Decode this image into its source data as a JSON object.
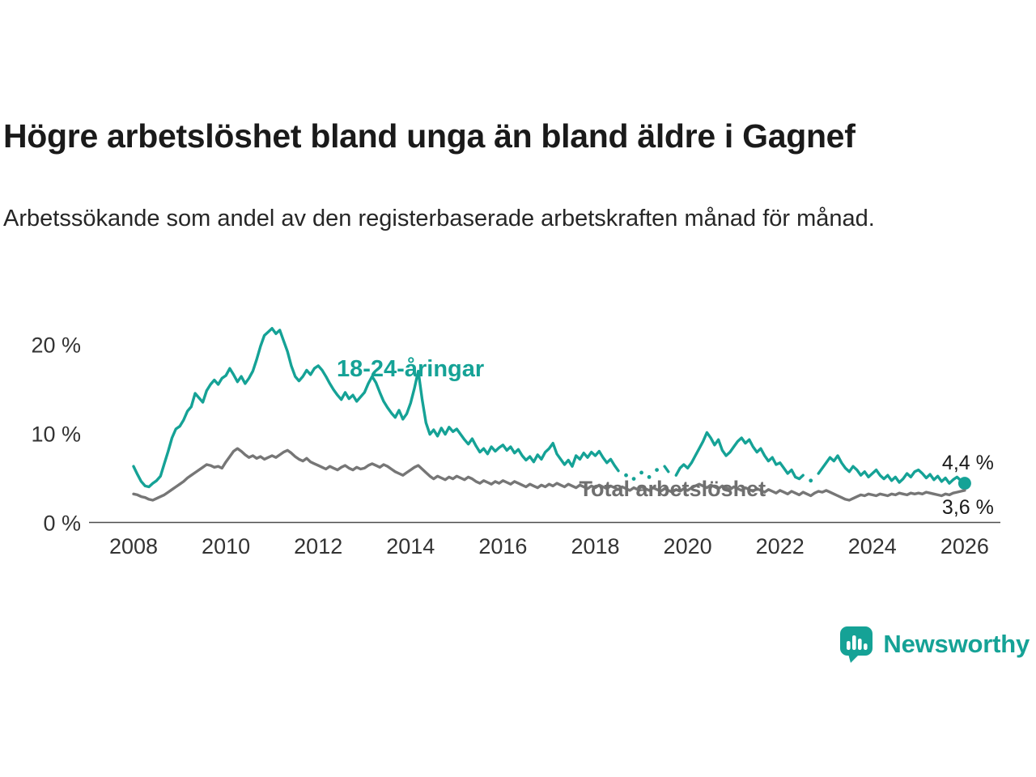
{
  "header": {
    "title": "Högre arbetslöshet bland unga än bland äldre i Gagnef",
    "subtitle": "Arbetssökande som andel av den registerbaserade arbetskraften månad för månad."
  },
  "branding": {
    "logo_text": "Newsworthy",
    "accent_color": "#15A296"
  },
  "chart_data": {
    "type": "line",
    "title": "Högre arbetslöshet bland unga än bland äldre i Gagnef",
    "xlabel": "",
    "ylabel": "",
    "grid": false,
    "x_start_year": 2008,
    "points_per_year": 12,
    "xlim": [
      2007,
      2026.8
    ],
    "ylim": [
      0,
      22.5
    ],
    "y_ticks": [
      {
        "value": 0,
        "label": "0 %"
      },
      {
        "value": 10,
        "label": "10 %"
      },
      {
        "value": 20,
        "label": "20 %"
      }
    ],
    "x_ticks": [
      {
        "value": 2008,
        "label": "2008"
      },
      {
        "value": 2010,
        "label": "2010"
      },
      {
        "value": 2012,
        "label": "2012"
      },
      {
        "value": 2014,
        "label": "2014"
      },
      {
        "value": 2016,
        "label": "2016"
      },
      {
        "value": 2018,
        "label": "2018"
      },
      {
        "value": 2020,
        "label": "2020"
      },
      {
        "value": 2022,
        "label": "2022"
      },
      {
        "value": 2024,
        "label": "2024"
      },
      {
        "value": 2026,
        "label": "2026"
      }
    ],
    "series": [
      {
        "name": "18-24-åringar",
        "color": "#15A296",
        "end_label": "4,4 %",
        "end_label_position": "above",
        "end_dot": true,
        "values": [
          6.3,
          5.4,
          4.6,
          4.1,
          4.0,
          4.4,
          4.7,
          5.2,
          6.6,
          8.0,
          9.5,
          10.5,
          10.8,
          11.5,
          12.5,
          13.0,
          14.5,
          14.0,
          13.5,
          14.8,
          15.5,
          16.0,
          15.5,
          16.2,
          16.5,
          17.3,
          16.6,
          15.8,
          16.4,
          15.6,
          16.2,
          17.0,
          18.3,
          19.8,
          21.0,
          21.4,
          21.8,
          21.2,
          21.6,
          20.4,
          19.2,
          17.6,
          16.4,
          15.9,
          16.4,
          17.1,
          16.6,
          17.3,
          17.6,
          17.1,
          16.4,
          15.6,
          14.9,
          14.3,
          13.8,
          14.6,
          13.9,
          14.3,
          13.6,
          14.1,
          14.6,
          15.6,
          16.4,
          15.7,
          14.6,
          13.6,
          12.9,
          12.3,
          11.8,
          12.6,
          11.6,
          12.2,
          13.4,
          15.1,
          17.0,
          13.8,
          11.2,
          9.9,
          10.4,
          9.7,
          10.6,
          9.9,
          10.7,
          10.2,
          10.5,
          9.9,
          9.3,
          8.8,
          9.4,
          8.6,
          7.9,
          8.3,
          7.7,
          8.5,
          8.0,
          8.4,
          8.7,
          8.1,
          8.5,
          7.8,
          8.2,
          7.5,
          7.0,
          7.4,
          6.8,
          7.6,
          7.1,
          7.9,
          8.3,
          8.9,
          7.7,
          7.1,
          6.5,
          7.0,
          6.3,
          7.5,
          7.1,
          7.8,
          7.3,
          7.9,
          7.5,
          8.0,
          7.3,
          6.7,
          7.1,
          6.4,
          5.8,
          null,
          5.3,
          null,
          4.9,
          null,
          5.6,
          null,
          5.1,
          null,
          5.9,
          null,
          6.3,
          5.7,
          null,
          5.3,
          6.1,
          6.5,
          6.1,
          6.7,
          7.5,
          8.3,
          9.1,
          10.1,
          9.5,
          8.7,
          9.3,
          8.1,
          7.5,
          7.9,
          8.5,
          9.1,
          9.5,
          8.9,
          9.3,
          8.5,
          7.9,
          8.3,
          7.5,
          6.9,
          7.3,
          6.5,
          6.7,
          6.1,
          5.5,
          5.9,
          5.1,
          4.9,
          5.3,
          null,
          4.7,
          null,
          5.5,
          6.1,
          6.7,
          7.3,
          6.9,
          7.5,
          6.7,
          6.1,
          5.7,
          6.3,
          5.9,
          5.3,
          5.7,
          5.1,
          5.5,
          5.9,
          5.3,
          4.9,
          5.3,
          4.7,
          5.1,
          4.5,
          4.9,
          5.5,
          5.1,
          5.7,
          5.9,
          5.5,
          5.0,
          5.4,
          4.8,
          5.2,
          4.6,
          5.0,
          4.4,
          4.8,
          5.1,
          4.7,
          4.4
        ]
      },
      {
        "name": "Total arbetslöshet",
        "color": "#767676",
        "end_label": "3,6 %",
        "end_label_position": "below",
        "end_dot": false,
        "values": [
          3.2,
          3.1,
          2.9,
          2.8,
          2.6,
          2.5,
          2.7,
          2.9,
          3.1,
          3.4,
          3.7,
          4.0,
          4.3,
          4.6,
          5.0,
          5.3,
          5.6,
          5.9,
          6.2,
          6.5,
          6.4,
          6.2,
          6.3,
          6.1,
          6.8,
          7.4,
          8.0,
          8.3,
          8.0,
          7.6,
          7.3,
          7.5,
          7.2,
          7.4,
          7.1,
          7.3,
          7.5,
          7.3,
          7.6,
          7.9,
          8.1,
          7.8,
          7.4,
          7.1,
          6.9,
          7.2,
          6.8,
          6.6,
          6.4,
          6.2,
          6.0,
          6.3,
          6.1,
          5.9,
          6.2,
          6.4,
          6.1,
          5.9,
          6.2,
          6.0,
          6.1,
          6.4,
          6.6,
          6.4,
          6.2,
          6.5,
          6.3,
          6.0,
          5.7,
          5.5,
          5.3,
          5.6,
          5.9,
          6.2,
          6.4,
          6.0,
          5.6,
          5.2,
          4.9,
          5.2,
          5.0,
          4.8,
          5.1,
          4.9,
          5.2,
          5.0,
          4.8,
          5.1,
          4.9,
          4.6,
          4.4,
          4.7,
          4.5,
          4.3,
          4.6,
          4.4,
          4.7,
          4.5,
          4.3,
          4.6,
          4.4,
          4.2,
          4.0,
          4.3,
          4.1,
          3.9,
          4.2,
          4.0,
          4.3,
          4.1,
          4.4,
          4.2,
          4.0,
          4.3,
          4.1,
          3.9,
          4.2,
          4.0,
          3.8,
          4.1,
          3.9,
          4.2,
          4.0,
          3.8,
          4.1,
          3.9,
          3.7,
          4.0,
          3.8,
          3.6,
          3.9,
          3.7,
          4.0,
          3.8,
          3.6,
          3.9,
          3.7,
          3.5,
          3.8,
          3.6,
          3.4,
          3.7,
          3.5,
          3.8,
          3.6,
          3.9,
          4.1,
          4.3,
          4.1,
          3.9,
          4.2,
          4.0,
          3.8,
          4.1,
          3.9,
          3.7,
          4.0,
          3.8,
          3.6,
          3.9,
          3.7,
          3.5,
          3.8,
          3.6,
          3.4,
          3.7,
          3.5,
          3.3,
          3.6,
          3.4,
          3.2,
          3.5,
          3.3,
          3.1,
          3.4,
          3.2,
          3.0,
          3.3,
          3.5,
          3.4,
          3.6,
          3.4,
          3.2,
          3.0,
          2.8,
          2.6,
          2.5,
          2.7,
          2.9,
          3.1,
          3.0,
          3.2,
          3.1,
          3.0,
          3.2,
          3.1,
          3.0,
          3.2,
          3.1,
          3.3,
          3.2,
          3.1,
          3.3,
          3.2,
          3.3,
          3.2,
          3.4,
          3.3,
          3.2,
          3.1,
          3.0,
          3.2,
          3.1,
          3.3,
          3.4,
          3.5,
          3.6
        ]
      }
    ],
    "annotations": [
      {
        "text": "18-24-åringar",
        "year": 2012.4,
        "value": 16.4,
        "color": "#15A296",
        "font_size": 29
      },
      {
        "text": "Total arbetslöshet",
        "year": 2017.65,
        "value": 2.95,
        "color": "#6F6F6F",
        "font_size": 27
      }
    ]
  }
}
